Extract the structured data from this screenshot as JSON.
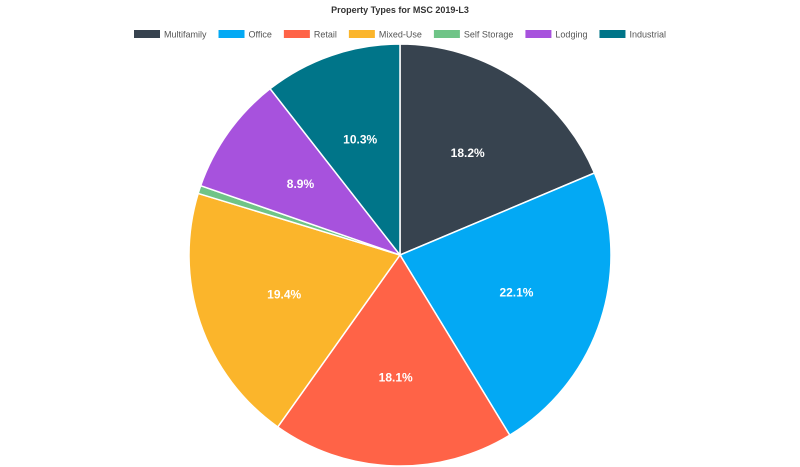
{
  "chart_data": {
    "type": "pie",
    "title": "Property Types for MSC 2019-L3",
    "legend_position": "top",
    "slices": [
      {
        "name": "Multifamily",
        "value": 18.2,
        "label": "18.2%",
        "color": "#37434f"
      },
      {
        "name": "Office",
        "value": 22.1,
        "label": "22.1%",
        "color": "#03a9f4"
      },
      {
        "name": "Retail",
        "value": 18.1,
        "label": "18.1%",
        "color": "#ff6347"
      },
      {
        "name": "Mixed-Use",
        "value": 19.4,
        "label": "19.4%",
        "color": "#fbb52b"
      },
      {
        "name": "Self Storage",
        "value": 0.6,
        "label": "",
        "color": "#6fc487"
      },
      {
        "name": "Lodging",
        "value": 8.9,
        "label": "8.9%",
        "color": "#a752dd"
      },
      {
        "name": "Industrial",
        "value": 10.3,
        "label": "10.3%",
        "color": "#007589"
      }
    ]
  }
}
